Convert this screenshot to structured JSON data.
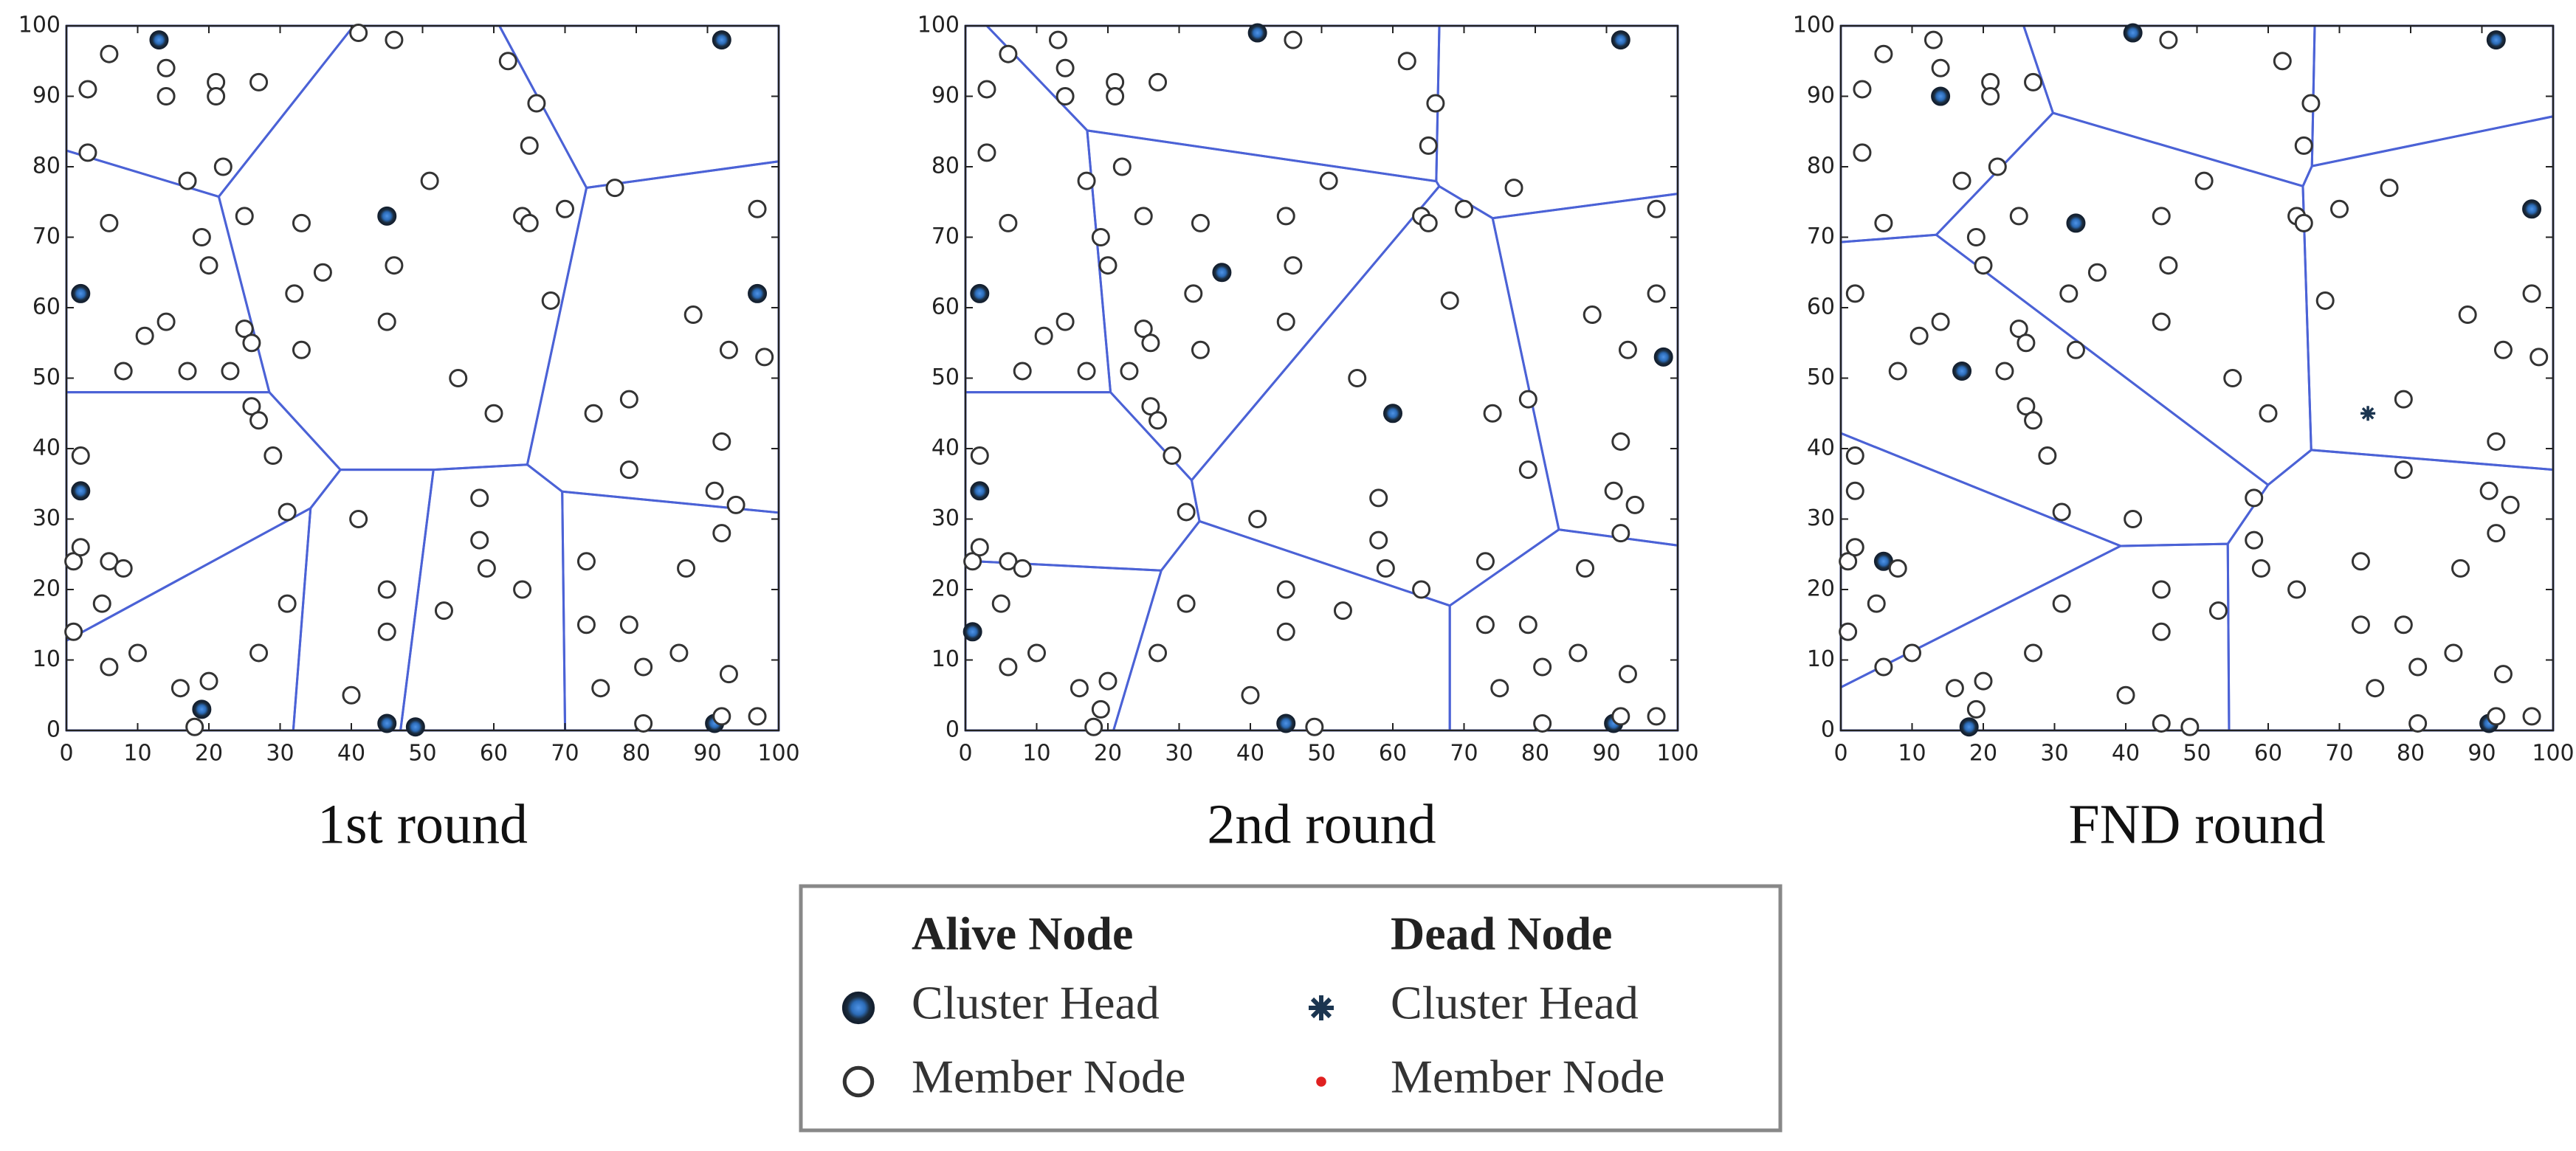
{
  "chart_data": [
    {
      "type": "scatter",
      "title": "1st round",
      "xlim": [
        0,
        100
      ],
      "ylim": [
        0,
        100
      ],
      "xticks": [
        0,
        10,
        20,
        30,
        40,
        50,
        60,
        70,
        80,
        90,
        100
      ],
      "yticks": [
        0,
        10,
        20,
        30,
        40,
        50,
        60,
        70,
        80,
        90,
        100
      ],
      "cell_boundary_color": "#4b62d6",
      "series": [
        {
          "marker": "alive-head",
          "x": [
            13,
            92,
            45,
            2,
            97,
            2,
            19,
            45,
            49,
            91
          ],
          "values": [
            98,
            98,
            73,
            62,
            62,
            34,
            3,
            1,
            0.5,
            1
          ]
        },
        {
          "marker": "alive-member",
          "x": [
            41,
            46,
            6,
            3,
            14,
            14,
            21,
            21,
            27,
            62,
            66,
            3,
            22,
            17,
            51,
            77,
            65,
            6,
            25,
            33,
            46,
            64,
            70,
            65,
            97,
            19,
            20,
            32,
            14,
            11,
            25,
            26,
            45,
            33,
            68,
            88,
            93,
            98,
            8,
            17,
            23,
            55,
            26,
            27,
            36,
            60,
            74,
            79,
            29,
            2,
            1,
            2,
            6,
            8,
            5,
            31,
            31,
            79,
            92,
            91,
            94,
            92,
            87,
            58,
            58,
            59,
            64,
            73,
            73,
            79,
            53,
            45,
            41,
            45,
            6,
            10,
            1,
            16,
            20,
            27,
            75,
            81,
            86,
            93,
            92,
            97,
            81,
            40,
            18
          ],
          "values": [
            99,
            98,
            96,
            91,
            94,
            90,
            92,
            90,
            92,
            95,
            89,
            82,
            80,
            78,
            78,
            77,
            83,
            72,
            73,
            72,
            66,
            73,
            74,
            72,
            74,
            70,
            66,
            62,
            58,
            56,
            57,
            55,
            58,
            54,
            61,
            59,
            54,
            53,
            51,
            51,
            51,
            50,
            46,
            44,
            65,
            45,
            45,
            47,
            39,
            39,
            24,
            26,
            24,
            23,
            18,
            31,
            18,
            37,
            41,
            34,
            32,
            28,
            23,
            33,
            27,
            23,
            20,
            24,
            15,
            15,
            17,
            20,
            30,
            14,
            9,
            11,
            14,
            6,
            7,
            11,
            6,
            9,
            11,
            8,
            2,
            2,
            1,
            5,
            0.5
          ]
        }
      ]
    },
    {
      "type": "scatter",
      "title": "2nd round",
      "xlim": [
        0,
        100
      ],
      "ylim": [
        0,
        100
      ],
      "xticks": [
        0,
        10,
        20,
        30,
        40,
        50,
        60,
        70,
        80,
        90,
        100
      ],
      "yticks": [
        0,
        10,
        20,
        30,
        40,
        50,
        60,
        70,
        80,
        90,
        100
      ],
      "cell_boundary_color": "#4b62d6",
      "series": [
        {
          "marker": "alive-head",
          "x": [
            41,
            92,
            2,
            36,
            60,
            98,
            2,
            1,
            45,
            91
          ],
          "values": [
            99,
            98,
            62,
            65,
            45,
            53,
            34,
            14,
            1,
            1
          ]
        },
        {
          "marker": "alive-member",
          "x": [
            13,
            46,
            6,
            3,
            14,
            14,
            21,
            21,
            27,
            62,
            66,
            3,
            22,
            17,
            51,
            77,
            65,
            6,
            25,
            33,
            46,
            45,
            64,
            70,
            65,
            97,
            19,
            20,
            32,
            14,
            11,
            25,
            26,
            45,
            33,
            68,
            88,
            97,
            93,
            8,
            17,
            23,
            55,
            26,
            27,
            74,
            79,
            29,
            2,
            1,
            2,
            6,
            8,
            5,
            31,
            31,
            79,
            92,
            91,
            94,
            92,
            87,
            58,
            58,
            59,
            64,
            73,
            73,
            79,
            53,
            45,
            41,
            45,
            6,
            10,
            16,
            20,
            27,
            75,
            81,
            86,
            93,
            92,
            97,
            81,
            40,
            18,
            19,
            49
          ],
          "values": [
            98,
            98,
            96,
            91,
            94,
            90,
            92,
            90,
            92,
            95,
            89,
            82,
            80,
            78,
            78,
            77,
            83,
            72,
            73,
            72,
            66,
            73,
            73,
            74,
            72,
            74,
            70,
            66,
            62,
            58,
            56,
            57,
            55,
            58,
            54,
            61,
            59,
            62,
            54,
            51,
            51,
            51,
            50,
            46,
            44,
            45,
            47,
            39,
            39,
            24,
            26,
            24,
            23,
            18,
            31,
            18,
            37,
            41,
            34,
            32,
            28,
            23,
            33,
            27,
            23,
            20,
            24,
            15,
            15,
            17,
            20,
            30,
            14,
            9,
            11,
            6,
            7,
            11,
            6,
            9,
            11,
            8,
            2,
            2,
            1,
            5,
            0.5,
            3,
            0.5
          ]
        }
      ]
    },
    {
      "type": "scatter",
      "title": "FND round",
      "xlim": [
        0,
        100
      ],
      "ylim": [
        0,
        100
      ],
      "xticks": [
        0,
        10,
        20,
        30,
        40,
        50,
        60,
        70,
        80,
        90,
        100
      ],
      "yticks": [
        0,
        10,
        20,
        30,
        40,
        50,
        60,
        70,
        80,
        90,
        100
      ],
      "cell_boundary_color": "#4b62d6",
      "series": [
        {
          "marker": "alive-head",
          "x": [
            41,
            92,
            14,
            33,
            97,
            17,
            6,
            18,
            91
          ],
          "values": [
            99,
            98,
            90,
            72,
            74,
            51,
            24,
            0.5,
            1
          ]
        },
        {
          "marker": "dead-head",
          "x": [
            74
          ],
          "values": [
            45
          ]
        },
        {
          "marker": "alive-member",
          "x": [
            13,
            46,
            6,
            3,
            14,
            21,
            21,
            27,
            62,
            66,
            3,
            22,
            17,
            51,
            77,
            65,
            6,
            25,
            46,
            45,
            64,
            70,
            65,
            19,
            20,
            2,
            32,
            14,
            11,
            25,
            26,
            45,
            33,
            68,
            88,
            97,
            93,
            98,
            8,
            23,
            55,
            26,
            27,
            36,
            60,
            79,
            29,
            2,
            2,
            1,
            2,
            8,
            5,
            31,
            31,
            79,
            92,
            91,
            94,
            92,
            87,
            58,
            58,
            59,
            64,
            73,
            73,
            79,
            53,
            45,
            41,
            45,
            6,
            10,
            1,
            16,
            20,
            27,
            75,
            81,
            86,
            93,
            92,
            97,
            81,
            40,
            19,
            45,
            49
          ],
          "values": [
            98,
            98,
            96,
            91,
            94,
            92,
            90,
            92,
            95,
            89,
            82,
            80,
            78,
            78,
            77,
            83,
            72,
            73,
            66,
            73,
            73,
            74,
            72,
            70,
            66,
            62,
            62,
            58,
            56,
            57,
            55,
            58,
            54,
            61,
            59,
            62,
            54,
            53,
            51,
            51,
            50,
            46,
            44,
            65,
            45,
            47,
            39,
            39,
            34,
            24,
            26,
            23,
            18,
            31,
            18,
            37,
            41,
            34,
            32,
            28,
            23,
            33,
            27,
            23,
            20,
            24,
            15,
            15,
            17,
            20,
            30,
            14,
            9,
            11,
            14,
            6,
            7,
            11,
            6,
            9,
            11,
            8,
            2,
            2,
            1,
            5,
            3,
            1,
            0.5
          ]
        }
      ]
    }
  ],
  "legend": {
    "columns": [
      {
        "title": "Alive Node",
        "items": [
          {
            "label": "Cluster Head",
            "marker": "alive-head"
          },
          {
            "label": "Member Node",
            "marker": "alive-member"
          }
        ]
      },
      {
        "title": "Dead Node",
        "items": [
          {
            "label": "Cluster Head",
            "marker": "dead-head"
          },
          {
            "label": "Member Node",
            "marker": "dead-member"
          }
        ]
      }
    ]
  }
}
